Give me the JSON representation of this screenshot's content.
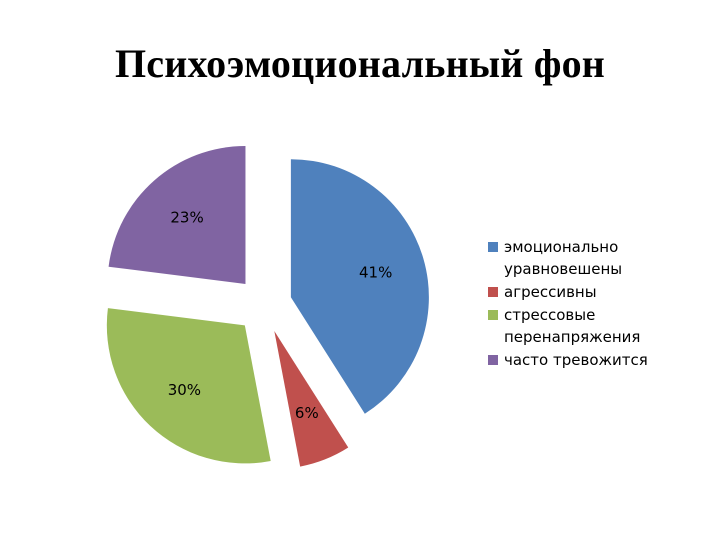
{
  "title": "Психоэмоциональный фон",
  "chart_data": {
    "type": "pie",
    "title": "Психоэмоциональный фон",
    "exploded": true,
    "start_angle_deg": 0,
    "direction": "clockwise",
    "slices": [
      {
        "label": "эмоционально уравновешены",
        "value": 41,
        "display": "41%",
        "color": "#4F81BD"
      },
      {
        "label": "агрессивны",
        "value": 6,
        "display": "6%",
        "color": "#C0504D"
      },
      {
        "label": "стрессовые перенапряжения",
        "value": 30,
        "display": "30%",
        "color": "#9BBB59"
      },
      {
        "label": "часто тревожится",
        "value": 23,
        "display": "23%",
        "color": "#8064A2"
      }
    ],
    "legend_position": "right"
  }
}
